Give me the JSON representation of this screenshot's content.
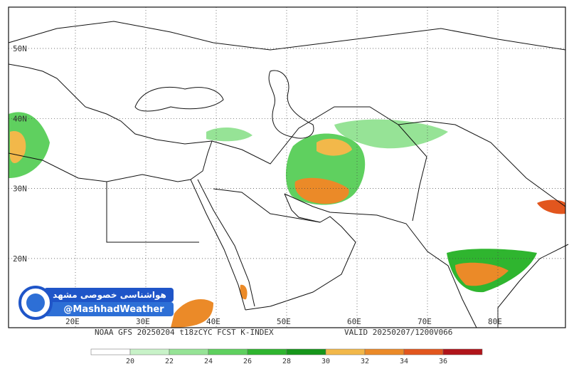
{
  "map": {
    "lat_labels": [
      "50N",
      "40N",
      "30N",
      "20N"
    ],
    "lon_labels": [
      "20E",
      "30E",
      "40E",
      "50E",
      "60E",
      "70E",
      "80E"
    ],
    "footer": [
      "NOAA GFS 20250204 t18zCYC FCST K-INDEX",
      "VALID 20250207/1200V066"
    ],
    "watermark": {
      "title": "هواشناسی خصوصی مشهد",
      "handle": "@MashhadWeather"
    },
    "legend": {
      "labels": [
        20,
        22,
        24,
        26,
        28,
        30,
        32,
        34,
        36
      ],
      "colors": [
        "#ffffff",
        "#c8f2c8",
        "#96e396",
        "#5fd05f",
        "#2fb52f",
        "#16961a",
        "#f2b84a",
        "#eb8a28",
        "#e2561e",
        "#b0141a"
      ]
    }
  }
}
